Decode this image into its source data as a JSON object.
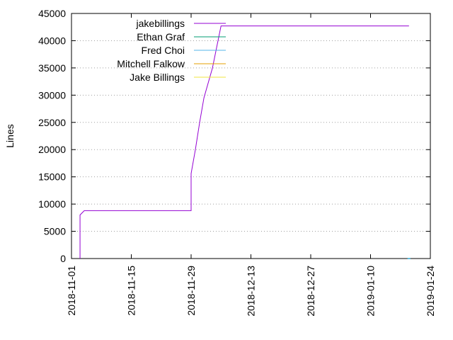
{
  "chart_data": {
    "type": "line",
    "title": "",
    "xlabel": "",
    "ylabel": "Lines",
    "ylim": [
      0,
      45000
    ],
    "xlim": [
      "2018-11-01",
      "2019-01-24"
    ],
    "y_ticks": [
      0,
      5000,
      10000,
      15000,
      20000,
      25000,
      30000,
      35000,
      40000,
      45000
    ],
    "x_ticks": [
      "2018-11-01",
      "2018-11-15",
      "2018-11-29",
      "2018-12-13",
      "2018-12-27",
      "2019-01-10",
      "2019-01-24"
    ],
    "grid": "horizontal dotted",
    "legend_position": "top-left",
    "series": [
      {
        "name": "jakebillings",
        "color": "#9400d3",
        "points": [
          [
            "2018-11-03",
            0
          ],
          [
            "2018-11-03",
            2000
          ],
          [
            "2018-11-03",
            8000
          ],
          [
            "2018-11-04",
            8800
          ],
          [
            "2018-11-29",
            8800
          ],
          [
            "2018-11-29",
            15600
          ],
          [
            "2018-11-30",
            20000
          ],
          [
            "2018-12-01",
            25000
          ],
          [
            "2018-12-02",
            29500
          ],
          [
            "2018-12-04",
            35000
          ],
          [
            "2018-12-06",
            42700
          ],
          [
            "2019-01-19",
            42700
          ]
        ]
      },
      {
        "name": "Ethan Graf",
        "color": "#009e73",
        "points": [
          [
            "2019-01-19",
            0
          ]
        ]
      },
      {
        "name": "Fred Choi",
        "color": "#56b4e9",
        "points": [
          [
            "2019-01-19",
            0
          ]
        ]
      },
      {
        "name": "Mitchell Falkow",
        "color": "#e69f00",
        "points": []
      },
      {
        "name": "Jake Billings",
        "color": "#f0e442",
        "points": []
      }
    ]
  }
}
